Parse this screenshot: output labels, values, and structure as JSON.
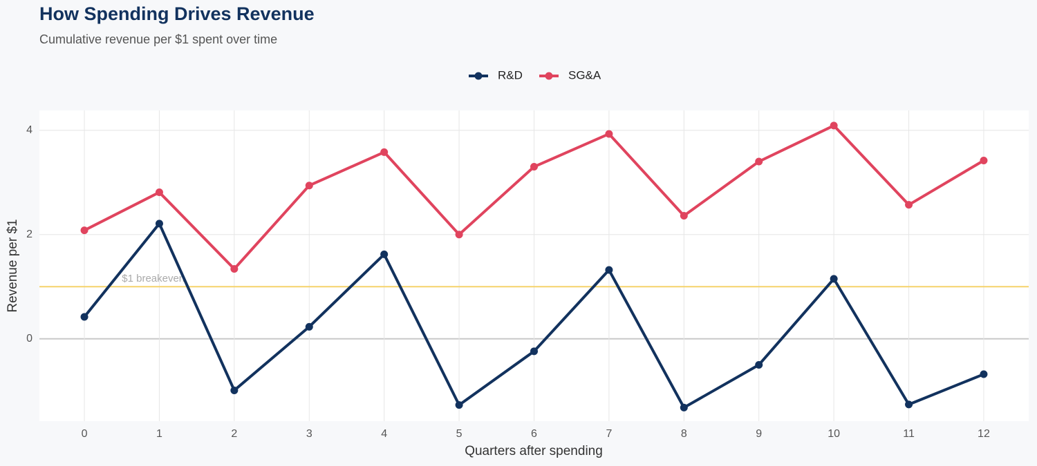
{
  "chart_data": {
    "type": "line",
    "title": "How Spending Drives Revenue",
    "subtitle": "Cumulative revenue per $1 spent over time",
    "xlabel": "Quarters after spending",
    "ylabel": "Revenue per $1",
    "x": [
      0,
      1,
      2,
      3,
      4,
      5,
      6,
      7,
      8,
      9,
      10,
      11,
      12
    ],
    "series": [
      {
        "name": "R&D",
        "color": "#12325e",
        "values": [
          0.42,
          2.21,
          -0.99,
          0.23,
          1.62,
          -1.27,
          -0.24,
          1.32,
          -1.32,
          -0.5,
          1.15,
          -1.26,
          -0.68
        ]
      },
      {
        "name": "SG&A",
        "color": "#e0445e",
        "values": [
          2.08,
          2.81,
          1.34,
          2.94,
          3.58,
          2.0,
          3.3,
          3.93,
          2.36,
          3.4,
          4.09,
          2.57,
          3.42
        ]
      }
    ],
    "reference_line": {
      "value": 1,
      "label": "$1 breakeven",
      "color": "#f5d36b"
    },
    "xlim": [
      -0.6,
      12.6
    ],
    "ylim": [
      -1.58,
      4.38
    ],
    "xticks": [
      0,
      1,
      2,
      3,
      4,
      5,
      6,
      7,
      8,
      9,
      10,
      11,
      12
    ],
    "yticks": [
      0,
      2,
      4
    ],
    "grid": true,
    "legend": "top"
  }
}
